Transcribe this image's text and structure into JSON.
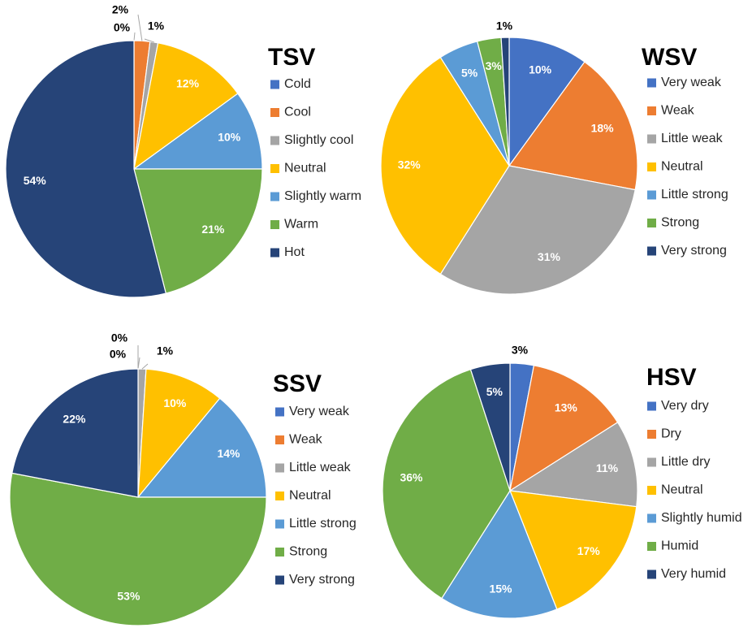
{
  "palette": {
    "blue": "#4472C4",
    "orange": "#ED7D31",
    "gray": "#A5A5A5",
    "gold": "#FFC000",
    "lightblue": "#5B9BD5",
    "green": "#70AD47",
    "navy": "#264478"
  },
  "chart_data": [
    {
      "type": "pie",
      "title": "TSV",
      "categories": [
        "Cold",
        "Cool",
        "Slightly cool",
        "Neutral",
        "Slightly warm",
        "Warm",
        "Hot"
      ],
      "values": [
        0,
        2,
        1,
        12,
        10,
        21,
        54
      ],
      "labels": [
        "0%",
        "2%",
        "1%",
        "12%",
        "10%",
        "21%",
        "54%"
      ],
      "legend_position": "right"
    },
    {
      "type": "pie",
      "title": "WSV",
      "categories": [
        "Very weak",
        "Weak",
        "Little weak",
        "Neutral",
        "Little strong",
        "Strong",
        "Very strong"
      ],
      "values": [
        10,
        18,
        31,
        32,
        5,
        3,
        1
      ],
      "labels": [
        "10%",
        "18%",
        "31%",
        "32%",
        "5%",
        "3%",
        "1%"
      ],
      "legend_position": "right"
    },
    {
      "type": "pie",
      "title": "SSV",
      "categories": [
        "Very weak",
        "Weak",
        "Little weak",
        "Neutral",
        "Little strong",
        "Strong",
        "Very strong"
      ],
      "values": [
        0,
        0,
        1,
        10,
        14,
        53,
        22
      ],
      "labels": [
        "0%",
        "0%",
        "1%",
        "10%",
        "14%",
        "53%",
        "22%"
      ],
      "legend_position": "right"
    },
    {
      "type": "pie",
      "title": "HSV",
      "categories": [
        "Very dry",
        "Dry",
        "Little dry",
        "Neutral",
        "Slightly humid",
        "Humid",
        "Very humid"
      ],
      "values": [
        3,
        13,
        11,
        17,
        15,
        36,
        5
      ],
      "labels": [
        "3%",
        "13%",
        "11%",
        "17%",
        "15%",
        "36%",
        "5%"
      ],
      "legend_position": "right"
    }
  ]
}
